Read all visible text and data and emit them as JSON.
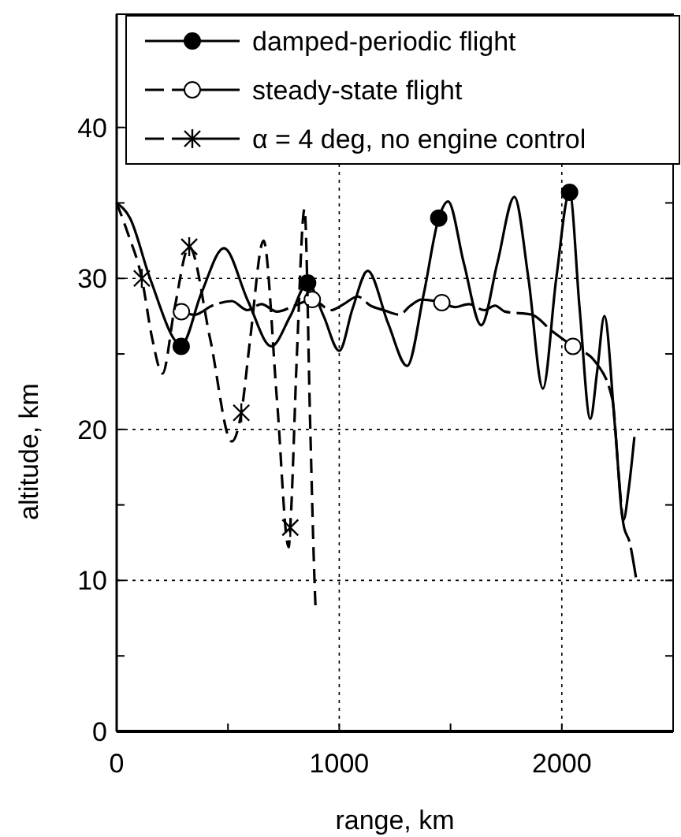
{
  "chart_data": {
    "type": "line",
    "xlabel": "range, km",
    "ylabel": "altitude, km",
    "xlim": [
      0,
      2500
    ],
    "ylim": [
      0,
      47.5
    ],
    "xticks": [
      0,
      {
        "value": 500,
        "label": null
      },
      1000,
      {
        "value": 1500,
        "label": null
      },
      2000
    ],
    "yticks": [
      0,
      {
        "value": 5,
        "label": null
      },
      10,
      {
        "value": 15,
        "label": null
      },
      20,
      {
        "value": 25,
        "label": null
      },
      30,
      {
        "value": 35,
        "label": null
      },
      40
    ],
    "grid": true,
    "legend": "top",
    "series": [
      {
        "name": "damped-periodic flight",
        "color": "#000000",
        "line_style": "solid",
        "x": [
          0,
          60,
          150,
          291,
          380,
          482,
          590,
          695,
          780,
          858,
          930,
          1000,
          1060,
          1128,
          1220,
          1305,
          1380,
          1447,
          1489,
          1560,
          1638,
          1710,
          1787,
          1850,
          1915,
          1975,
          2035,
          2080,
          2128,
          2160,
          2191,
          2240,
          2277,
          2300,
          2326
        ],
        "values": [
          35,
          34,
          30,
          25.6,
          29,
          32,
          28.5,
          25.5,
          27.5,
          29.7,
          27.5,
          25.2,
          28,
          30.5,
          27,
          24.2,
          29,
          34,
          35.1,
          31,
          26.9,
          31,
          35.4,
          30,
          22.7,
          30,
          35.7,
          28,
          20.7,
          24,
          27.5,
          20,
          14,
          16,
          19.5
        ]
      },
      {
        "type": "scatter",
        "color": "#000000",
        "marker": "circle",
        "x": [
          290,
          858,
          1447,
          2035
        ],
        "values": [
          25.5,
          29.7,
          34,
          35.7
        ]
      },
      {
        "name": "steady-state flight",
        "color": "#000000",
        "line_style": "dashed",
        "x": [
          291,
          350,
          430,
          517,
          587,
          650,
          720,
          800,
          879,
          963,
          1020,
          1083,
          1140,
          1199,
          1270,
          1320,
          1369,
          1461,
          1520,
          1582,
          1652,
          1700,
          1745,
          1865,
          1957,
          2050,
          2149,
          2227,
          2255,
          2277,
          2305,
          2333
        ],
        "values": [
          27.8,
          27.6,
          28.2,
          28.5,
          27.9,
          28.3,
          27.8,
          28.2,
          28.6,
          27.9,
          28.3,
          28.8,
          28.2,
          27.9,
          27.6,
          28.2,
          28.6,
          28.4,
          28.1,
          28.3,
          27.9,
          28.2,
          27.8,
          27.6,
          26.5,
          25.5,
          24.5,
          22,
          17.1,
          13.7,
          12.5,
          10.2
        ]
      },
      {
        "type": "scatter",
        "color": "#ffffff",
        "marker": "circle",
        "x": [
          291,
          879,
          1461,
          2050
        ],
        "values": [
          27.8,
          28.6,
          28.4,
          25.5
        ]
      },
      {
        "name": "α = 4 deg, no engine control",
        "color": "#000000",
        "line_style": "dotted",
        "x": [
          0,
          50,
          113,
          160,
          206,
          260,
          326,
          420,
          517,
          560,
          600,
          660,
          720,
          773,
          780,
          810,
          844,
          870,
          887,
          894
        ],
        "values": [
          35,
          33,
          30,
          26,
          23.7,
          28,
          32.1,
          26,
          19.2,
          21.1,
          26,
          32.5,
          22,
          12.2,
          13.5,
          25,
          34.6,
          20,
          10.8,
          8
        ]
      },
      {
        "type": "scatter",
        "color": "#000000",
        "marker": "cross",
        "x": [
          113,
          326,
          560,
          780
        ],
        "values": [
          30,
          32.1,
          21.1,
          13.5
        ]
      }
    ]
  }
}
